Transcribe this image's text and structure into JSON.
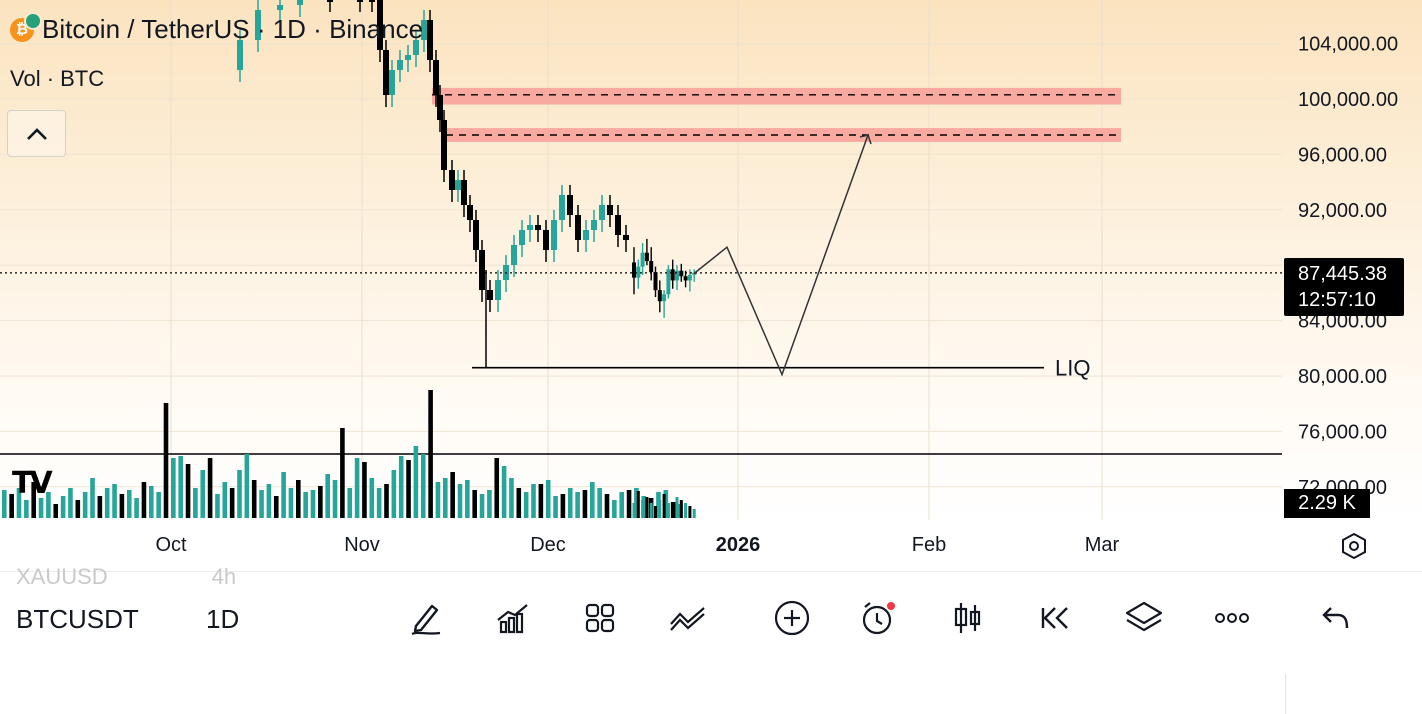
{
  "header": {
    "title": "Bitcoin / TetherUS · 1D · Binance",
    "vol_label": "Vol · BTC",
    "btc_glyph": "₿"
  },
  "chart_data": {
    "type": "candlestick",
    "symbol": "BTCUSDT",
    "interval": "1D",
    "y_ticks": [
      "104,000.00",
      "100,000.00",
      "96,000.00",
      "92,000.00",
      "84,000.00",
      "80,000.00",
      "76,000.00",
      "72,000.00"
    ],
    "ylim": [
      70000,
      106500
    ],
    "x_ticks": [
      "Oct",
      "Nov",
      "Dec",
      "2026",
      "Feb",
      "Mar"
    ],
    "current_price": "87,445.38",
    "countdown": "12:57:10",
    "volume_value": "2.29 K",
    "annotations": {
      "resistance_zones": [
        {
          "low": 99600,
          "high": 100800,
          "dashed_level": 100300
        },
        {
          "low": 96900,
          "high": 97900,
          "dashed_level": 97400
        }
      ],
      "liquidity_level": {
        "label": "LIQ",
        "price": 80600
      },
      "projected_path": [
        87400,
        89300,
        80100,
        97400
      ]
    },
    "candles": [
      {
        "o": 88200,
        "h": 89300,
        "l": 85900,
        "c": 87100
      },
      {
        "o": 87100,
        "h": 88400,
        "l": 86300,
        "c": 87900
      },
      {
        "o": 87900,
        "h": 89600,
        "l": 87300,
        "c": 88900
      },
      {
        "o": 88900,
        "h": 89900,
        "l": 88000,
        "c": 88300
      },
      {
        "o": 88300,
        "h": 89300,
        "l": 86900,
        "c": 87500
      },
      {
        "o": 87500,
        "h": 87900,
        "l": 85700,
        "c": 86200
      },
      {
        "o": 86200,
        "h": 86900,
        "l": 84600,
        "c": 85400
      },
      {
        "o": 85400,
        "h": 86200,
        "l": 84200,
        "c": 85900
      },
      {
        "o": 85900,
        "h": 88000,
        "l": 85600,
        "c": 87700
      },
      {
        "o": 87700,
        "h": 88400,
        "l": 86300,
        "c": 86900
      },
      {
        "o": 86900,
        "h": 88000,
        "l": 86200,
        "c": 87600
      },
      {
        "o": 87600,
        "h": 88100,
        "l": 86800,
        "c": 87200
      },
      {
        "o": 87200,
        "h": 87600,
        "l": 86400,
        "c": 86900
      },
      {
        "o": 86900,
        "h": 87700,
        "l": 86100,
        "c": 87300
      },
      {
        "o": 87300,
        "h": 87700,
        "l": 86800,
        "c": 87445
      }
    ],
    "volume_bars": [
      5,
      9,
      6,
      7,
      5,
      4,
      6,
      8,
      5,
      4,
      7,
      6,
      5,
      4,
      3
    ]
  },
  "bottom": {
    "ghost_symbol": "XAUUSD",
    "ghost_interval": "4h",
    "symbol": "BTCUSDT",
    "interval": "1D"
  },
  "colors": {
    "bull": "#26a69a",
    "bear": "#000000",
    "zone_fill": "#f7a39b",
    "bg_top": "#fbe3bf"
  },
  "toolbar": {
    "icons": [
      "draw-icon",
      "indicators-icon",
      "templates-icon",
      "compare-icon",
      "add-icon",
      "alert-icon",
      "chart-type-icon",
      "replay-icon",
      "layers-icon",
      "more-icon",
      "undo-icon"
    ]
  }
}
